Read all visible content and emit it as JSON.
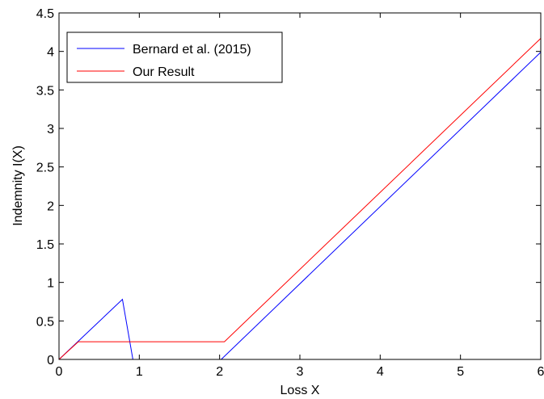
{
  "chart_data": {
    "type": "line",
    "title": "",
    "xlabel": "Loss X",
    "ylabel": "Indemnity I(X)",
    "xlim": [
      0,
      6
    ],
    "ylim": [
      0,
      4.5
    ],
    "xticks": [
      0,
      1,
      2,
      3,
      4,
      5,
      6
    ],
    "yticks": [
      0,
      0.5,
      1,
      1.5,
      2,
      2.5,
      3,
      3.5,
      4,
      4.5
    ],
    "xtick_labels": [
      "0",
      "1",
      "2",
      "3",
      "4",
      "5",
      "6"
    ],
    "ytick_labels": [
      "0",
      "0.5",
      "1",
      "1.5",
      "2",
      "2.5",
      "3",
      "3.5",
      "4",
      "4.5"
    ],
    "grid": false,
    "box": true,
    "legend": {
      "placement": "top-left"
    },
    "series": [
      {
        "name": "Bernard et al. (2015)",
        "color": "#0000ff",
        "points": [
          [
            0,
            0
          ],
          [
            0.79,
            0.78
          ],
          [
            0.92,
            0
          ],
          [
            2.02,
            0
          ],
          [
            6,
            3.99
          ]
        ]
      },
      {
        "name": "Our Result",
        "color": "#ff0000",
        "points": [
          [
            0,
            0
          ],
          [
            0.24,
            0.23
          ],
          [
            2.06,
            0.23
          ],
          [
            6,
            4.17
          ]
        ]
      }
    ]
  }
}
